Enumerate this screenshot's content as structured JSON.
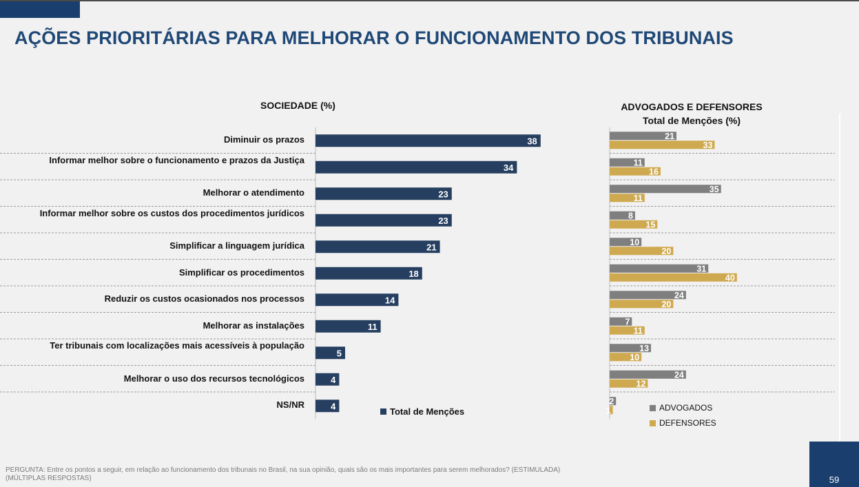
{
  "header": {
    "title": "AÇÕES PRIORITÁRIAS PARA MELHORAR O FUNCIONAMENTO DOS TRIBUNAIS"
  },
  "colors": {
    "sociedade": "#263f60",
    "advogados": "#7f7f7f",
    "defensores": "#cfa94f",
    "brand": "#1a3e6e"
  },
  "sociedade": {
    "title": "SOCIEDADE  (%)",
    "legend": "Total de Menções"
  },
  "advogados_defensores": {
    "title_line1": "ADVOGADOS E DEFENSORES",
    "title_line2": "Total de Menções (%)",
    "legend_advogados": "ADVOGADOS",
    "legend_defensores": "DEFENSORES"
  },
  "chart_data": [
    {
      "type": "bar",
      "orientation": "horizontal",
      "title": "SOCIEDADE  (%)",
      "categories": [
        "Diminuir os prazos",
        "Informar melhor sobre o funcionamento e prazos da Justiça",
        "Melhorar o atendimento",
        "Informar melhor sobre os custos dos procedimentos jurídicos",
        "Simplificar a linguagem jurídica",
        "Simplificar os procedimentos",
        "Reduzir os custos ocasionados nos processos",
        "Melhorar as instalações",
        "Ter tribunais com localizações mais acessíveis à população",
        "Melhorar o uso dos recursos tecnológicos",
        "NS/NR"
      ],
      "series": [
        {
          "name": "Total de Menções",
          "values": [
            38,
            34,
            23,
            23,
            21,
            18,
            14,
            11,
            5,
            4,
            4
          ]
        }
      ]
    },
    {
      "type": "bar",
      "orientation": "horizontal",
      "title": "ADVOGADOS E DEFENSORES Total de Menções (%)",
      "categories": [
        "Diminuir os prazos",
        "Informar melhor sobre o funcionamento e prazos da Justiça",
        "Melhorar o atendimento",
        "Informar melhor sobre os custos dos procedimentos jurídicos",
        "Simplificar a linguagem jurídica",
        "Simplificar os procedimentos",
        "Reduzir os custos ocasionados nos processos",
        "Melhorar as instalações",
        "Ter tribunais com localizações mais acessíveis à população",
        "Melhorar o uso dos recursos tecnológicos",
        "NS/NR"
      ],
      "series": [
        {
          "name": "ADVOGADOS",
          "values": [
            21,
            11,
            35,
            8,
            10,
            31,
            24,
            7,
            13,
            24,
            2
          ]
        },
        {
          "name": "DEFENSORES",
          "values": [
            33,
            16,
            11,
            15,
            20,
            40,
            20,
            11,
            10,
            12,
            1
          ]
        }
      ]
    }
  ],
  "footer": {
    "question": "PERGUNTA:  Entre os pontos a seguir, em relação ao funcionamento dos tribunais no Brasil, na sua opinião, quais são os mais importantes para serem melhorados? (ESTIMULADA)",
    "note": "(MÚLTIPLAS  RESPOSTAS)",
    "page_number": "59"
  }
}
